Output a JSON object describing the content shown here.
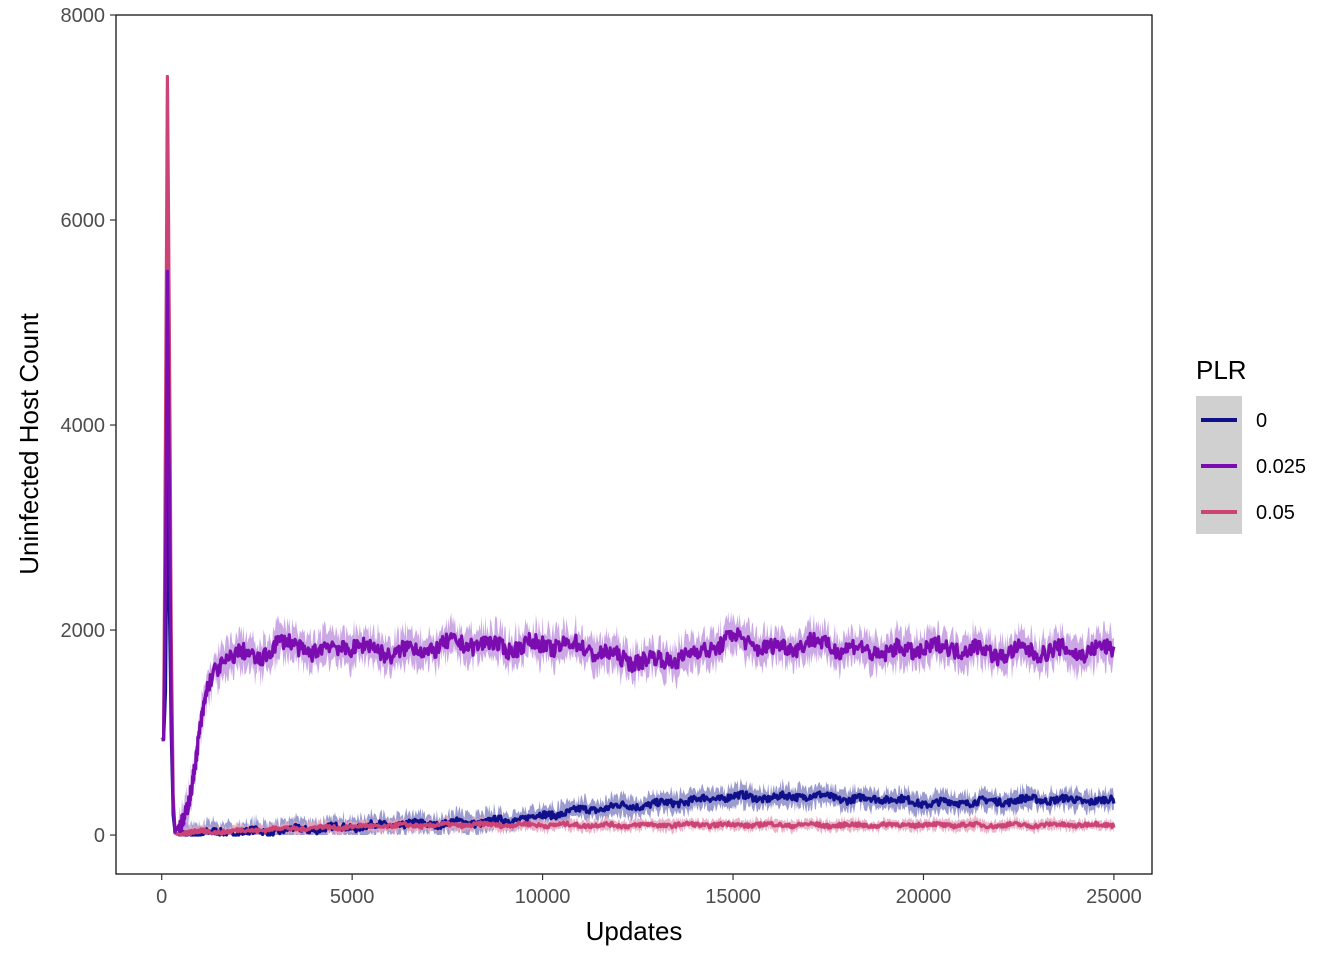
{
  "chart_data": {
    "type": "line",
    "xlabel": "Updates",
    "ylabel": "Uninfected Host Count",
    "xlim": [
      -1200,
      26000
    ],
    "ylim": [
      -380,
      8000
    ],
    "x_ticks": [
      0,
      5000,
      10000,
      15000,
      20000,
      25000
    ],
    "x_tick_labels": [
      "0",
      "5000",
      "10000",
      "15000",
      "20000",
      "25000"
    ],
    "y_ticks": [
      0,
      2000,
      4000,
      6000,
      8000
    ],
    "y_tick_labels": [
      "0",
      "2000",
      "4000",
      "6000",
      "8000"
    ],
    "grid": false,
    "legend": {
      "title": "PLR",
      "position": "right"
    },
    "series": [
      {
        "name": "0",
        "color": "#10108a",
        "band_color": "#8a8ac8",
        "band_halfwidth": 90,
        "noise": 35,
        "x": [
          0,
          50,
          100,
          150,
          200,
          250,
          300,
          350,
          400,
          600,
          1000,
          2000,
          3000,
          4000,
          5000,
          6000,
          7000,
          8000,
          9000,
          10000,
          11000,
          12000,
          13000,
          14000,
          15000,
          16000,
          17000,
          18000,
          19000,
          20000,
          21000,
          22000,
          23000,
          24000,
          25000
        ],
        "y": [
          930,
          930,
          1400,
          3600,
          2300,
          1000,
          200,
          20,
          10,
          15,
          20,
          25,
          40,
          60,
          80,
          100,
          110,
          120,
          140,
          190,
          240,
          280,
          300,
          340,
          380,
          360,
          390,
          350,
          360,
          310,
          320,
          330,
          350,
          340,
          330
        ]
      },
      {
        "name": "0.025",
        "color": "#7a0cb0",
        "band_color": "#c39ae0",
        "band_halfwidth": 150,
        "noise": 80,
        "x": [
          0,
          50,
          100,
          150,
          200,
          250,
          300,
          350,
          400,
          600,
          800,
          1000,
          1200,
          1400,
          1600,
          1800,
          2000,
          2500,
          3000,
          4000,
          5000,
          6000,
          7000,
          8000,
          9000,
          10000,
          11000,
          12000,
          13000,
          14000,
          15000,
          16000,
          17000,
          18000,
          19000,
          20000,
          21000,
          22000,
          23000,
          24000,
          25000
        ],
        "y": [
          930,
          930,
          2500,
          5500,
          3500,
          1200,
          300,
          30,
          60,
          200,
          500,
          1000,
          1400,
          1600,
          1700,
          1760,
          1780,
          1700,
          1880,
          1800,
          1850,
          1780,
          1820,
          1880,
          1830,
          1860,
          1840,
          1720,
          1700,
          1760,
          1930,
          1810,
          1880,
          1820,
          1780,
          1820,
          1830,
          1770,
          1800,
          1790,
          1810
        ]
      },
      {
        "name": "0.05",
        "color": "#cc4475",
        "band_color": "#e6a8bf",
        "band_halfwidth": 50,
        "noise": 20,
        "x": [
          0,
          50,
          100,
          150,
          200,
          250,
          300,
          350,
          400,
          600,
          1000,
          2000,
          3000,
          4000,
          5000,
          6000,
          7000,
          8000,
          9000,
          10000,
          12000,
          14000,
          16000,
          18000,
          20000,
          22000,
          24000,
          25000
        ],
        "y": [
          930,
          950,
          4000,
          7400,
          5000,
          2000,
          400,
          20,
          10,
          20,
          30,
          40,
          60,
          70,
          80,
          90,
          95,
          100,
          100,
          100,
          95,
          100,
          100,
          95,
          100,
          95,
          100,
          100
        ]
      }
    ]
  }
}
